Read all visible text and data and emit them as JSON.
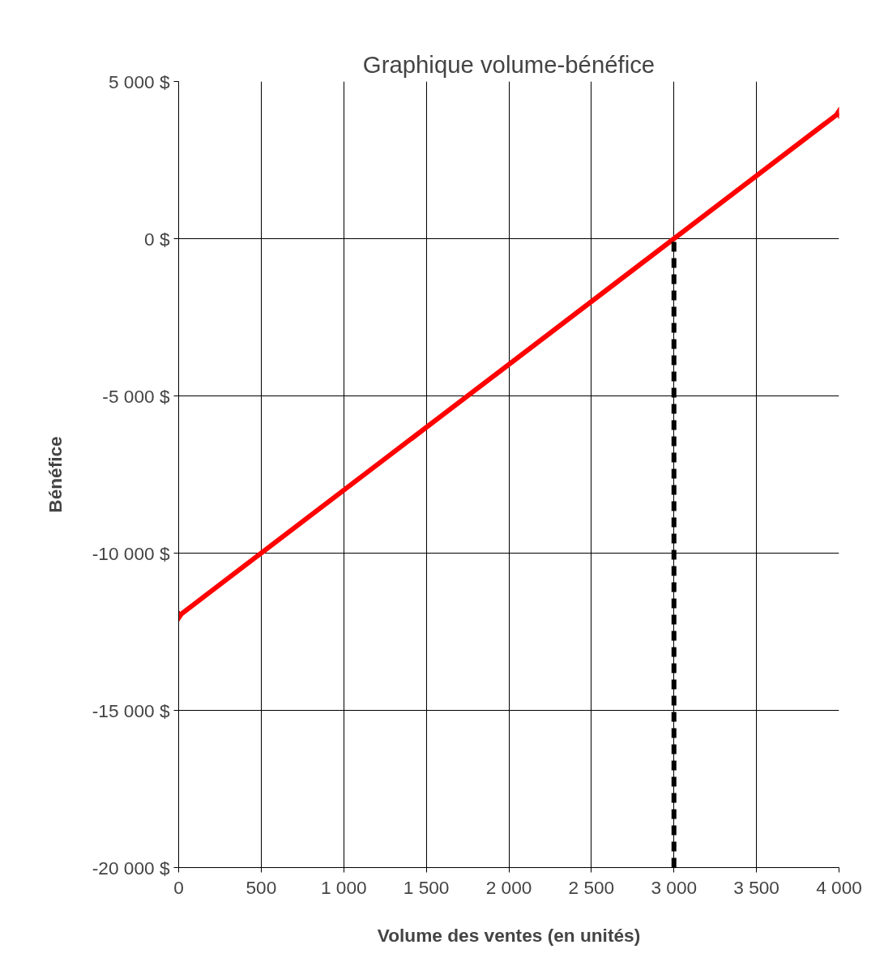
{
  "chart_data": {
    "type": "line",
    "title": "Graphique volume-bénéfice",
    "xlabel": "Volume des ventes (en unités)",
    "ylabel": "Bénéfice",
    "x": [
      0,
      4000
    ],
    "series": [
      {
        "color": "#ff0000",
        "values": [
          -12000,
          4000
        ],
        "marker": "diamond",
        "line_style": "solid"
      },
      {
        "type": "line",
        "x": [
          3000,
          3000
        ],
        "color": "#000000",
        "values": [
          -20000,
          0
        ],
        "marker": "none",
        "line_style": "dashed"
      }
    ],
    "xlim": [
      0,
      4000
    ],
    "ylim": [
      -20000,
      5000
    ],
    "xticks": [
      0,
      {
        "value": 500,
        "label": "500"
      },
      {
        "value": 1000,
        "label": "1 000"
      },
      {
        "value": 1500,
        "label": "1 500"
      },
      {
        "value": 2000,
        "label": "2 000"
      },
      {
        "value": 2500,
        "label": "2 500"
      },
      {
        "value": 3000,
        "label": "3 000"
      },
      {
        "value": 3500,
        "label": "3 500"
      },
      {
        "value": 4000,
        "label": "4 000"
      }
    ],
    "yticks": [
      {
        "value": -20000,
        "label": "-20 000 $"
      },
      {
        "value": -15000,
        "label": "-15 000 $"
      },
      {
        "value": -10000,
        "label": "-10 000 $"
      },
      {
        "value": -5000,
        "label": "-5 000 $"
      },
      {
        "value": 0,
        "label": "0 $"
      },
      {
        "value": 5000,
        "label": "5 000 $"
      }
    ],
    "grid": true
  }
}
